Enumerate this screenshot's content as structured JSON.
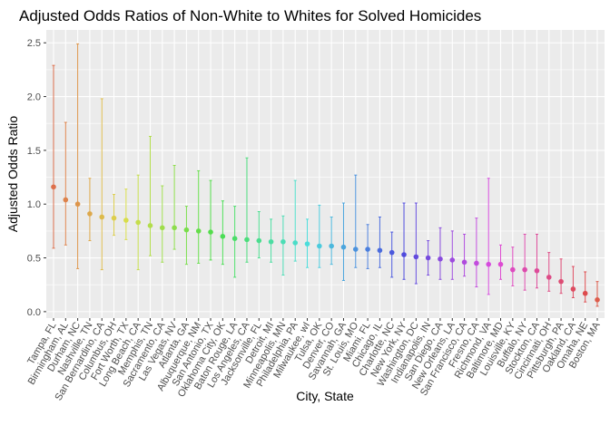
{
  "chart_data": {
    "type": "scatter",
    "title": "Adjusted Odds Ratios of Non-White to Whites for Solved Homicides",
    "xlabel": "City, State",
    "ylabel": "Adjusted Odds Ratio",
    "ylim": [
      -0.06,
      2.62
    ],
    "yticks": [
      "0.0",
      "0.5",
      "1.0",
      "1.5",
      "2.0",
      "2.5"
    ],
    "ytick_values": [
      0,
      0.5,
      1.0,
      1.5,
      2.0,
      2.5
    ],
    "grid": true,
    "legend": "none",
    "panel_color": "#ebebeb",
    "grid_color": "#ffffff",
    "categories": [
      "Tampa, FL",
      "Birmingham, AL",
      "Durham, NC",
      "Nashville, TN",
      "San Bernardino, CA",
      "Columbus, OH",
      "Fort Worth, TX",
      "Long Beach, CA",
      "Memphis, TN",
      "Sacramento, CA",
      "Las Vegas, NV",
      "Atlanta, GA",
      "Albuquerque, NM",
      "San Antonio, TX",
      "Oklahoma City, OK",
      "Baton Rouge, LA",
      "Los Angeles, CA",
      "Jacksonville, FL",
      "Detroit, MI",
      "Minneapolis, MN",
      "Philadelphia, PA",
      "Milwaukee, wI",
      "Tulsa, OK",
      "Denver, CO",
      "Savannah, GA",
      "St. Louis, MO",
      "Miami, FL",
      "Chicago, IL",
      "Charlotte, NC",
      "New York, NY",
      "Washington, DC",
      "Indianapolis, IN",
      "San Diego, CA",
      "New Orleans, LA",
      "San Francisco, CA",
      "Fresno, CA",
      "Richmond, VA",
      "Baltimore, MD",
      "Louisville, KY",
      "Buffalo, NY",
      "Stockton, CA",
      "Cincinnati, OH",
      "Pittsburgh, PA",
      "Oakland, CA",
      "Omaha, NE",
      "Boston, MA"
    ],
    "values": [
      1.16,
      1.04,
      1.0,
      0.91,
      0.88,
      0.87,
      0.85,
      0.83,
      0.8,
      0.78,
      0.78,
      0.76,
      0.75,
      0.74,
      0.7,
      0.68,
      0.67,
      0.66,
      0.65,
      0.65,
      0.64,
      0.63,
      0.61,
      0.61,
      0.6,
      0.58,
      0.58,
      0.57,
      0.55,
      0.53,
      0.51,
      0.5,
      0.49,
      0.48,
      0.46,
      0.45,
      0.44,
      0.44,
      0.39,
      0.39,
      0.38,
      0.32,
      0.28,
      0.21,
      0.17,
      0.11
    ],
    "lower": [
      0.59,
      0.62,
      0.4,
      0.66,
      0.39,
      0.71,
      0.67,
      0.39,
      0.52,
      0.46,
      0.58,
      0.44,
      0.45,
      0.48,
      0.44,
      0.32,
      0.46,
      0.5,
      0.46,
      0.34,
      0.47,
      0.41,
      0.41,
      0.44,
      0.29,
      0.41,
      0.4,
      0.41,
      0.32,
      0.3,
      0.26,
      0.34,
      0.3,
      0.3,
      0.33,
      0.23,
      0.16,
      0.3,
      0.24,
      0.2,
      0.22,
      0.19,
      0.17,
      0.13,
      0.09,
      0.05
    ],
    "upper": [
      2.29,
      1.76,
      2.49,
      1.24,
      1.98,
      1.09,
      1.14,
      1.27,
      1.63,
      1.17,
      1.36,
      0.98,
      1.31,
      1.22,
      1.03,
      0.98,
      1.43,
      0.93,
      0.86,
      0.89,
      1.22,
      0.86,
      0.99,
      0.88,
      1.01,
      1.27,
      0.81,
      0.88,
      0.74,
      1.01,
      1.01,
      0.66,
      0.78,
      0.75,
      0.72,
      0.87,
      1.24,
      0.62,
      0.6,
      0.72,
      0.72,
      0.55,
      0.49,
      0.42,
      0.37,
      0.28
    ]
  }
}
